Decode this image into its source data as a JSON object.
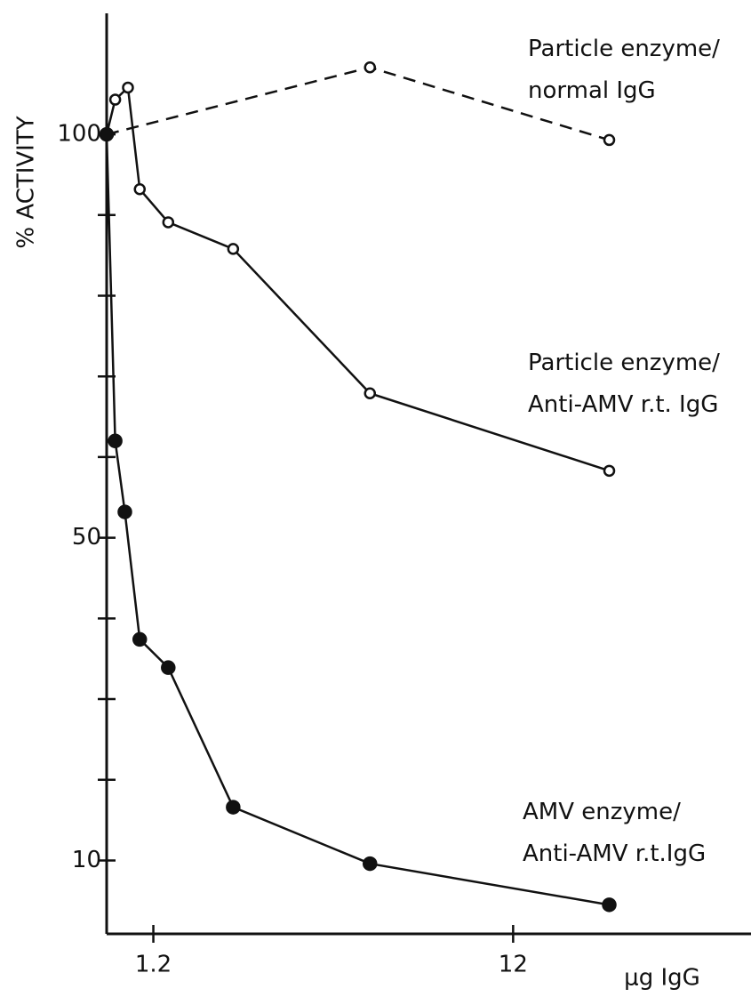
{
  "chart_data": {
    "type": "line",
    "y_label": "% ACTIVITY",
    "x_label": "μg IgG",
    "xscale": "log",
    "xlim": [
      0.89,
      55
    ],
    "xticks": [
      1.2,
      12
    ],
    "ylim": [
      0.9,
      115
    ],
    "yticks": [
      10,
      50,
      100
    ],
    "yminor": [
      20,
      30,
      40,
      60,
      70,
      80,
      90
    ],
    "series": [
      {
        "name": "Particle enzyme/\nnormal IgG",
        "color": "#111111",
        "marker": "open",
        "dashed": true,
        "x": [
          0.89,
          4.8,
          22.2
        ],
        "values": [
          100,
          108.3,
          99.3
        ]
      },
      {
        "name": "Particle enzyme/\nAnti-AMV r.t. IgG",
        "color": "#111111",
        "marker": "open",
        "dashed": false,
        "x": [
          0.89,
          0.94,
          1.02,
          1.1,
          1.32,
          2.0,
          4.8,
          22.2
        ],
        "values": [
          100,
          104.3,
          105.8,
          93.2,
          89.1,
          85.8,
          67.9,
          58.3
        ]
      },
      {
        "name": "AMV enzyme/\nAnti-AMV r.t.IgG",
        "color": "#111111",
        "marker": "filled",
        "dashed": false,
        "x": [
          0.89,
          0.94,
          1.0,
          1.1,
          1.32,
          2.0,
          4.8,
          22.2
        ],
        "values": [
          100,
          62.0,
          53.2,
          37.4,
          33.9,
          16.6,
          9.6,
          4.5
        ]
      }
    ]
  }
}
